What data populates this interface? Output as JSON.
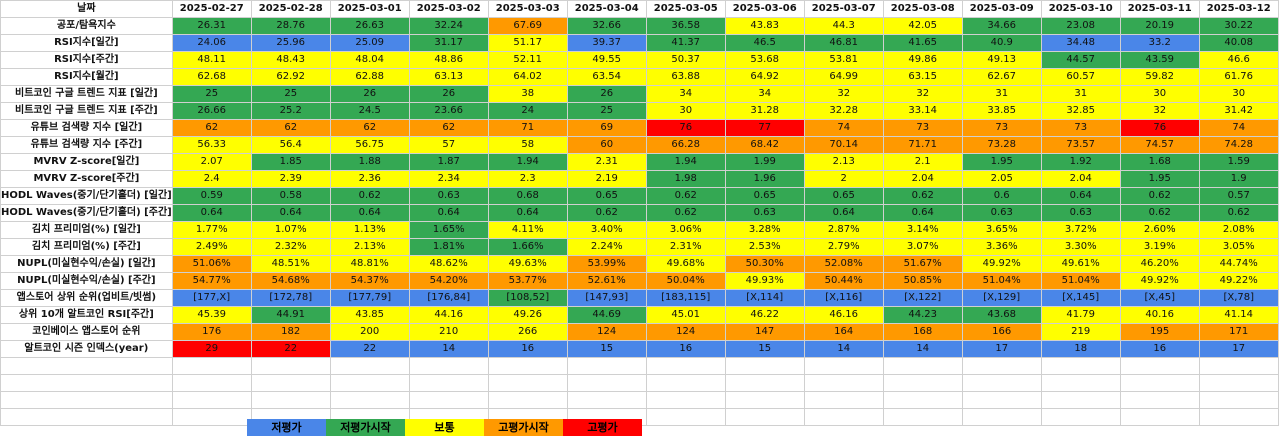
{
  "header": {
    "label": "날짜",
    "dates": [
      "2025-02-27",
      "2025-02-28",
      "2025-03-01",
      "2025-03-02",
      "2025-03-03",
      "2025-03-04",
      "2025-03-05",
      "2025-03-06",
      "2025-03-07",
      "2025-03-08",
      "2025-03-09",
      "2025-03-10",
      "2025-03-11",
      "2025-03-12"
    ]
  },
  "rows": [
    {
      "label": "공포/탐욕지수",
      "values": [
        "26.31",
        "28.76",
        "26.63",
        "32.24",
        "67.69",
        "32.66",
        "36.58",
        "43.83",
        "44.3",
        "42.05",
        "34.66",
        "23.08",
        "20.19",
        "30.22"
      ],
      "colors": [
        "green",
        "green",
        "green",
        "green",
        "orange",
        "green",
        "green",
        "yellow",
        "yellow",
        "yellow",
        "green",
        "green",
        "green",
        "green"
      ]
    },
    {
      "label": "RSI지수[일간]",
      "values": [
        "24.06",
        "25.96",
        "25.09",
        "31.17",
        "51.17",
        "39.37",
        "41.37",
        "46.5",
        "46.81",
        "41.65",
        "40.9",
        "34.48",
        "33.2",
        "40.08"
      ],
      "colors": [
        "blue",
        "blue",
        "blue",
        "green",
        "yellow",
        "blue",
        "green",
        "green",
        "green",
        "green",
        "green",
        "blue",
        "blue",
        "green"
      ]
    },
    {
      "label": "RSI지수[주간]",
      "values": [
        "48.11",
        "48.43",
        "48.04",
        "48.86",
        "52.11",
        "49.55",
        "50.37",
        "53.68",
        "53.81",
        "49.86",
        "49.13",
        "44.57",
        "43.59",
        "46.6"
      ],
      "colors": [
        "yellow",
        "yellow",
        "yellow",
        "yellow",
        "yellow",
        "yellow",
        "yellow",
        "yellow",
        "yellow",
        "yellow",
        "yellow",
        "green",
        "green",
        "yellow"
      ]
    },
    {
      "label": "RSI지수[월간]",
      "values": [
        "62.68",
        "62.92",
        "62.88",
        "63.13",
        "64.02",
        "63.54",
        "63.88",
        "64.92",
        "64.99",
        "63.15",
        "62.67",
        "60.57",
        "59.82",
        "61.76"
      ],
      "colors": [
        "yellow",
        "yellow",
        "yellow",
        "yellow",
        "yellow",
        "yellow",
        "yellow",
        "yellow",
        "yellow",
        "yellow",
        "yellow",
        "yellow",
        "yellow",
        "yellow"
      ]
    },
    {
      "label": "비트코인 구글 트렌드 지표 [일간]",
      "values": [
        "25",
        "25",
        "26",
        "26",
        "38",
        "26",
        "34",
        "34",
        "32",
        "32",
        "31",
        "31",
        "30",
        "30"
      ],
      "colors": [
        "green",
        "green",
        "green",
        "green",
        "yellow",
        "green",
        "yellow",
        "yellow",
        "yellow",
        "yellow",
        "yellow",
        "yellow",
        "yellow",
        "yellow"
      ]
    },
    {
      "label": "비트코인 구글 트렌드 지표 [주간]",
      "values": [
        "26.66",
        "25.2",
        "24.5",
        "23.66",
        "24",
        "25",
        "30",
        "31.28",
        "32.28",
        "33.14",
        "33.85",
        "32.85",
        "32",
        "31.42"
      ],
      "colors": [
        "green",
        "green",
        "green",
        "green",
        "green",
        "green",
        "yellow",
        "yellow",
        "yellow",
        "yellow",
        "yellow",
        "yellow",
        "yellow",
        "yellow"
      ]
    },
    {
      "label": "유튜브 검색량 지수 [일간]",
      "values": [
        "62",
        "62",
        "62",
        "62",
        "71",
        "69",
        "76",
        "77",
        "74",
        "73",
        "73",
        "73",
        "76",
        "74"
      ],
      "colors": [
        "orange",
        "orange",
        "orange",
        "orange",
        "orange",
        "orange",
        "red",
        "red",
        "orange",
        "orange",
        "orange",
        "orange",
        "red",
        "orange"
      ]
    },
    {
      "label": "유튜브 검색량 지수 [주간]",
      "values": [
        "56.33",
        "56.4",
        "56.75",
        "57",
        "58",
        "60",
        "66.28",
        "68.42",
        "70.14",
        "71.71",
        "73.28",
        "73.57",
        "74.57",
        "74.28"
      ],
      "colors": [
        "yellow",
        "yellow",
        "yellow",
        "yellow",
        "yellow",
        "orange",
        "orange",
        "orange",
        "orange",
        "orange",
        "orange",
        "orange",
        "orange",
        "orange"
      ]
    },
    {
      "label": "MVRV Z-score[일간]",
      "values": [
        "2.07",
        "1.85",
        "1.88",
        "1.87",
        "1.94",
        "2.31",
        "1.94",
        "1.99",
        "2.13",
        "2.1",
        "1.95",
        "1.92",
        "1.68",
        "1.59"
      ],
      "colors": [
        "yellow",
        "green",
        "green",
        "green",
        "green",
        "yellow",
        "green",
        "green",
        "yellow",
        "yellow",
        "green",
        "green",
        "green",
        "green"
      ]
    },
    {
      "label": "MVRV Z-score[주간]",
      "values": [
        "2.4",
        "2.39",
        "2.36",
        "2.34",
        "2.3",
        "2.19",
        "1.98",
        "1.96",
        "2",
        "2.04",
        "2.05",
        "2.04",
        "1.95",
        "1.9"
      ],
      "colors": [
        "yellow",
        "yellow",
        "yellow",
        "yellow",
        "yellow",
        "yellow",
        "green",
        "green",
        "yellow",
        "yellow",
        "yellow",
        "yellow",
        "green",
        "green"
      ]
    },
    {
      "label": "HODL Waves(중기/단기홀더) [일간]",
      "values": [
        "0.59",
        "0.58",
        "0.62",
        "0.63",
        "0.68",
        "0.65",
        "0.62",
        "0.65",
        "0.65",
        "0.62",
        "0.6",
        "0.64",
        "0.62",
        "0.57"
      ],
      "colors": [
        "green",
        "green",
        "green",
        "green",
        "green",
        "green",
        "green",
        "green",
        "green",
        "green",
        "green",
        "green",
        "green",
        "green"
      ]
    },
    {
      "label": "HODL Waves(중기/단기홀더) [주간]",
      "values": [
        "0.64",
        "0.64",
        "0.64",
        "0.64",
        "0.64",
        "0.62",
        "0.62",
        "0.63",
        "0.64",
        "0.64",
        "0.63",
        "0.63",
        "0.62",
        "0.62"
      ],
      "colors": [
        "green",
        "green",
        "green",
        "green",
        "green",
        "green",
        "green",
        "green",
        "green",
        "green",
        "green",
        "green",
        "green",
        "green"
      ]
    },
    {
      "label": "김치 프리미엄(%) [일간]",
      "values": [
        "1.77%",
        "1.07%",
        "1.13%",
        "1.65%",
        "4.11%",
        "3.40%",
        "3.06%",
        "3.28%",
        "2.87%",
        "3.14%",
        "3.65%",
        "3.72%",
        "2.60%",
        "2.08%"
      ],
      "colors": [
        "yellow",
        "yellow",
        "yellow",
        "green",
        "yellow",
        "yellow",
        "yellow",
        "yellow",
        "yellow",
        "yellow",
        "yellow",
        "yellow",
        "yellow",
        "yellow"
      ]
    },
    {
      "label": "김치 프리미엄(%) [주간]",
      "values": [
        "2.49%",
        "2.32%",
        "2.13%",
        "1.81%",
        "1.66%",
        "2.24%",
        "2.31%",
        "2.53%",
        "2.79%",
        "3.07%",
        "3.36%",
        "3.30%",
        "3.19%",
        "3.05%"
      ],
      "colors": [
        "yellow",
        "yellow",
        "yellow",
        "green",
        "green",
        "yellow",
        "yellow",
        "yellow",
        "yellow",
        "yellow",
        "yellow",
        "yellow",
        "yellow",
        "yellow"
      ]
    },
    {
      "label": "NUPL(미실현수익/손실) [일간]",
      "values": [
        "51.06%",
        "48.51%",
        "48.81%",
        "48.62%",
        "49.63%",
        "53.99%",
        "49.68%",
        "50.30%",
        "52.08%",
        "51.67%",
        "49.92%",
        "49.61%",
        "46.20%",
        "44.74%"
      ],
      "colors": [
        "orange",
        "yellow",
        "yellow",
        "yellow",
        "yellow",
        "orange",
        "yellow",
        "orange",
        "orange",
        "orange",
        "yellow",
        "yellow",
        "yellow",
        "yellow"
      ]
    },
    {
      "label": "NUPL(미실현수익/손실) [주간]",
      "values": [
        "54.77%",
        "54.68%",
        "54.37%",
        "54.20%",
        "53.77%",
        "52.61%",
        "50.04%",
        "49.93%",
        "50.44%",
        "50.85%",
        "51.04%",
        "51.04%",
        "49.92%",
        "49.22%"
      ],
      "colors": [
        "orange",
        "orange",
        "orange",
        "orange",
        "orange",
        "orange",
        "orange",
        "yellow",
        "orange",
        "orange",
        "orange",
        "orange",
        "yellow",
        "yellow"
      ]
    },
    {
      "label": "앱스토어 상위 순위(업비트/빗썸)",
      "values": [
        "[177,X]",
        "[172,78]",
        "[177,79]",
        "[176,84]",
        "[108,52]",
        "[147,93]",
        "[183,115]",
        "[X,114]",
        "[X,116]",
        "[X,122]",
        "[X,129]",
        "[X,145]",
        "[X,45]",
        "[X,78]"
      ],
      "colors": [
        "blue",
        "blue",
        "blue",
        "blue",
        "green",
        "blue",
        "blue",
        "blue",
        "blue",
        "blue",
        "blue",
        "blue",
        "blue",
        "blue"
      ]
    },
    {
      "label": "상위 10개 알트코인 RSI[주간]",
      "values": [
        "45.39",
        "44.91",
        "43.85",
        "44.16",
        "49.26",
        "44.69",
        "45.01",
        "46.22",
        "46.16",
        "44.23",
        "43.68",
        "41.79",
        "40.16",
        "41.14"
      ],
      "colors": [
        "yellow",
        "green",
        "yellow",
        "yellow",
        "yellow",
        "green",
        "yellow",
        "yellow",
        "yellow",
        "green",
        "green",
        "yellow",
        "yellow",
        "yellow"
      ]
    },
    {
      "label": "코인베이스 앱스토어 순위",
      "values": [
        "176",
        "182",
        "200",
        "210",
        "266",
        "124",
        "124",
        "147",
        "164",
        "168",
        "166",
        "219",
        "195",
        "171"
      ],
      "colors": [
        "orange",
        "orange",
        "yellow",
        "yellow",
        "yellow",
        "orange",
        "orange",
        "orange",
        "orange",
        "orange",
        "orange",
        "yellow",
        "orange",
        "orange"
      ]
    },
    {
      "label": "알트코인 시즌 인덱스(year)",
      "values": [
        "29",
        "22",
        "22",
        "14",
        "16",
        "15",
        "16",
        "15",
        "14",
        "14",
        "17",
        "18",
        "16",
        "17"
      ],
      "colors": [
        "red",
        "red",
        "blue",
        "blue",
        "blue",
        "blue",
        "blue",
        "blue",
        "blue",
        "blue",
        "blue",
        "blue",
        "blue",
        "blue"
      ]
    }
  ],
  "legend": [
    {
      "label": "저평가",
      "color": "blue"
    },
    {
      "label": "저평가시작",
      "color": "green"
    },
    {
      "label": "보통",
      "color": "yellow"
    },
    {
      "label": "고평가시작",
      "color": "orange"
    },
    {
      "label": "고평가",
      "color": "red"
    }
  ],
  "colors": {
    "blue": "#4a86e8",
    "green": "#34a853",
    "yellow": "#ffff00",
    "orange": "#ff9900",
    "red": "#ff0000"
  }
}
